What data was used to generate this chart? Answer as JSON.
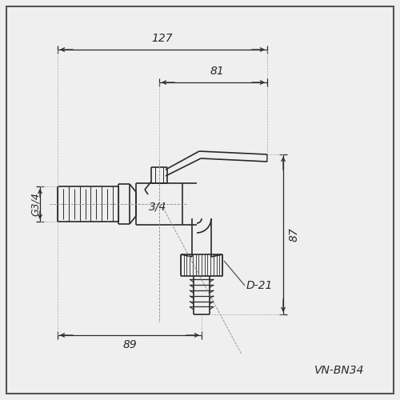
{
  "title": "VN-BN34",
  "dim_127": "127",
  "dim_81": "81",
  "dim_87": "87",
  "dim_89": "89",
  "dim_d21": "D-21",
  "dim_g34": "G3/4",
  "label_34": "3/4",
  "line_color": "#2a2a2a",
  "bg_color": "#efefef",
  "fig_width": 5.0,
  "fig_height": 5.0,
  "dpi": 100
}
